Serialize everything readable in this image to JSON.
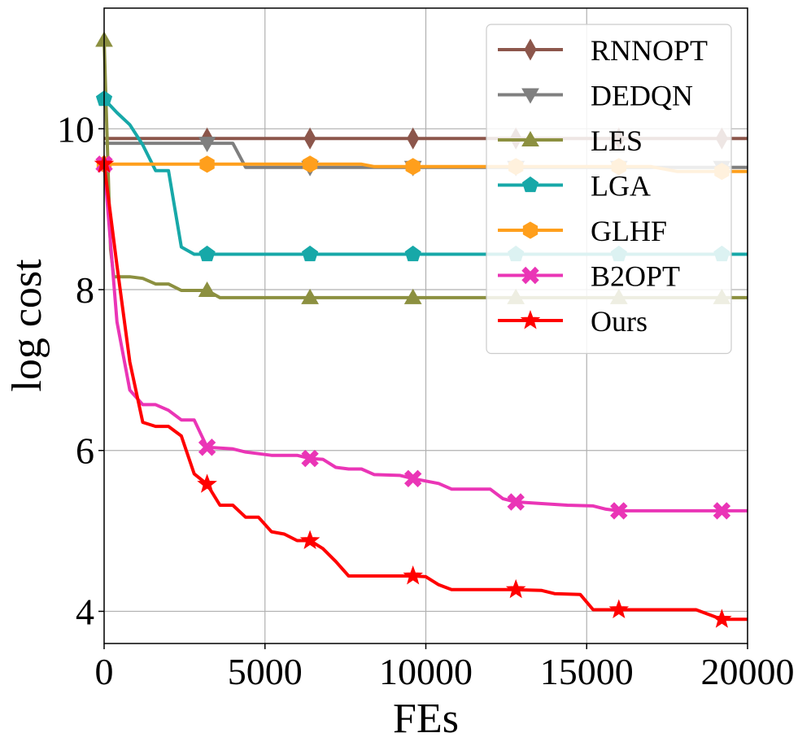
{
  "chart_data": {
    "type": "line",
    "title": "",
    "xlabel": "FEs",
    "ylabel": "log cost",
    "xlim": [
      0,
      20000
    ],
    "ylim": [
      3.6,
      11.5
    ],
    "xticks": [
      0,
      5000,
      10000,
      15000,
      20000
    ],
    "yticks": [
      4,
      6,
      8,
      10
    ],
    "grid": true,
    "legend_position": "top-right",
    "series": [
      {
        "name": "RNNOPT",
        "color": "#8c564b",
        "marker": "diamond",
        "points": [
          [
            0,
            9.88
          ],
          [
            20000,
            9.88
          ]
        ],
        "marker_x": [
          3200,
          6400,
          9600,
          12800,
          16000,
          19200
        ]
      },
      {
        "name": "DEDQN",
        "color": "#7f7f7f",
        "marker": "triangle-down",
        "points": [
          [
            0,
            9.82
          ],
          [
            4000,
            9.82
          ],
          [
            4400,
            9.52
          ],
          [
            20000,
            9.52
          ]
        ],
        "marker_x": [
          3200,
          6400,
          9600,
          12800,
          16000,
          19200
        ]
      },
      {
        "name": "LES",
        "color": "#8c9040",
        "marker": "triangle-up",
        "points": [
          [
            0,
            11.1
          ],
          [
            200,
            8.5
          ],
          [
            300,
            8.16
          ],
          [
            800,
            8.16
          ],
          [
            1200,
            8.14
          ],
          [
            1600,
            8.07
          ],
          [
            2000,
            8.07
          ],
          [
            2400,
            7.99
          ],
          [
            3200,
            7.99
          ],
          [
            3600,
            7.9
          ],
          [
            20000,
            7.9
          ]
        ],
        "marker_x": [
          0,
          3200,
          6400,
          9600,
          12800,
          16000,
          19200
        ]
      },
      {
        "name": "LGA",
        "color": "#17a8a8",
        "marker": "pentagon",
        "points": [
          [
            0,
            10.37
          ],
          [
            400,
            10.2
          ],
          [
            800,
            10.05
          ],
          [
            1200,
            9.8
          ],
          [
            1600,
            9.48
          ],
          [
            2000,
            9.48
          ],
          [
            2400,
            8.53
          ],
          [
            2800,
            8.44
          ],
          [
            20000,
            8.44
          ]
        ],
        "marker_x": [
          0,
          3200,
          6400,
          9600,
          12800,
          16000,
          19200
        ]
      },
      {
        "name": "GLHF",
        "color": "#ff9f1c",
        "marker": "hexagon",
        "points": [
          [
            0,
            9.56
          ],
          [
            8000,
            9.56
          ],
          [
            8400,
            9.53
          ],
          [
            17000,
            9.53
          ],
          [
            17800,
            9.47
          ],
          [
            20000,
            9.47
          ]
        ],
        "marker_x": [
          0,
          3200,
          6400,
          9600,
          12800,
          16000,
          19200
        ]
      },
      {
        "name": "B2OPT",
        "color": "#ea35b6",
        "marker": "x-filled",
        "points": [
          [
            0,
            9.56
          ],
          [
            400,
            7.6
          ],
          [
            800,
            6.75
          ],
          [
            1200,
            6.57
          ],
          [
            1600,
            6.57
          ],
          [
            2000,
            6.5
          ],
          [
            2400,
            6.38
          ],
          [
            2800,
            6.38
          ],
          [
            3200,
            6.04
          ],
          [
            4000,
            6.02
          ],
          [
            4400,
            5.98
          ],
          [
            5200,
            5.94
          ],
          [
            6000,
            5.94
          ],
          [
            6400,
            5.9
          ],
          [
            6800,
            5.89
          ],
          [
            7200,
            5.79
          ],
          [
            7600,
            5.77
          ],
          [
            8000,
            5.77
          ],
          [
            8400,
            5.7
          ],
          [
            9200,
            5.69
          ],
          [
            9600,
            5.65
          ],
          [
            10400,
            5.59
          ],
          [
            10800,
            5.52
          ],
          [
            12000,
            5.52
          ],
          [
            12400,
            5.4
          ],
          [
            12800,
            5.36
          ],
          [
            13600,
            5.34
          ],
          [
            14000,
            5.33
          ],
          [
            14400,
            5.32
          ],
          [
            15200,
            5.31
          ],
          [
            15600,
            5.27
          ],
          [
            16000,
            5.25
          ],
          [
            20000,
            5.25
          ]
        ],
        "marker_x": [
          0,
          3200,
          6400,
          9600,
          12800,
          16000,
          19200
        ]
      },
      {
        "name": "Ours",
        "color": "#ff0000",
        "marker": "star",
        "points": [
          [
            0,
            9.56
          ],
          [
            400,
            8.3
          ],
          [
            800,
            7.1
          ],
          [
            1200,
            6.35
          ],
          [
            1600,
            6.3
          ],
          [
            2000,
            6.3
          ],
          [
            2400,
            6.18
          ],
          [
            2800,
            5.71
          ],
          [
            3200,
            5.58
          ],
          [
            3600,
            5.32
          ],
          [
            4000,
            5.32
          ],
          [
            4400,
            5.17
          ],
          [
            4800,
            5.17
          ],
          [
            5200,
            4.99
          ],
          [
            5600,
            4.96
          ],
          [
            6000,
            4.88
          ],
          [
            6400,
            4.88
          ],
          [
            6800,
            4.78
          ],
          [
            7200,
            4.62
          ],
          [
            7600,
            4.44
          ],
          [
            9600,
            4.44
          ],
          [
            10000,
            4.43
          ],
          [
            10400,
            4.33
          ],
          [
            10800,
            4.27
          ],
          [
            12800,
            4.27
          ],
          [
            13600,
            4.26
          ],
          [
            14000,
            4.22
          ],
          [
            14800,
            4.21
          ],
          [
            15200,
            4.02
          ],
          [
            18400,
            4.02
          ],
          [
            18800,
            3.96
          ],
          [
            19200,
            3.9
          ],
          [
            20000,
            3.9
          ]
        ],
        "marker_x": [
          0,
          3200,
          6400,
          9600,
          12800,
          16000,
          19200
        ]
      }
    ]
  }
}
